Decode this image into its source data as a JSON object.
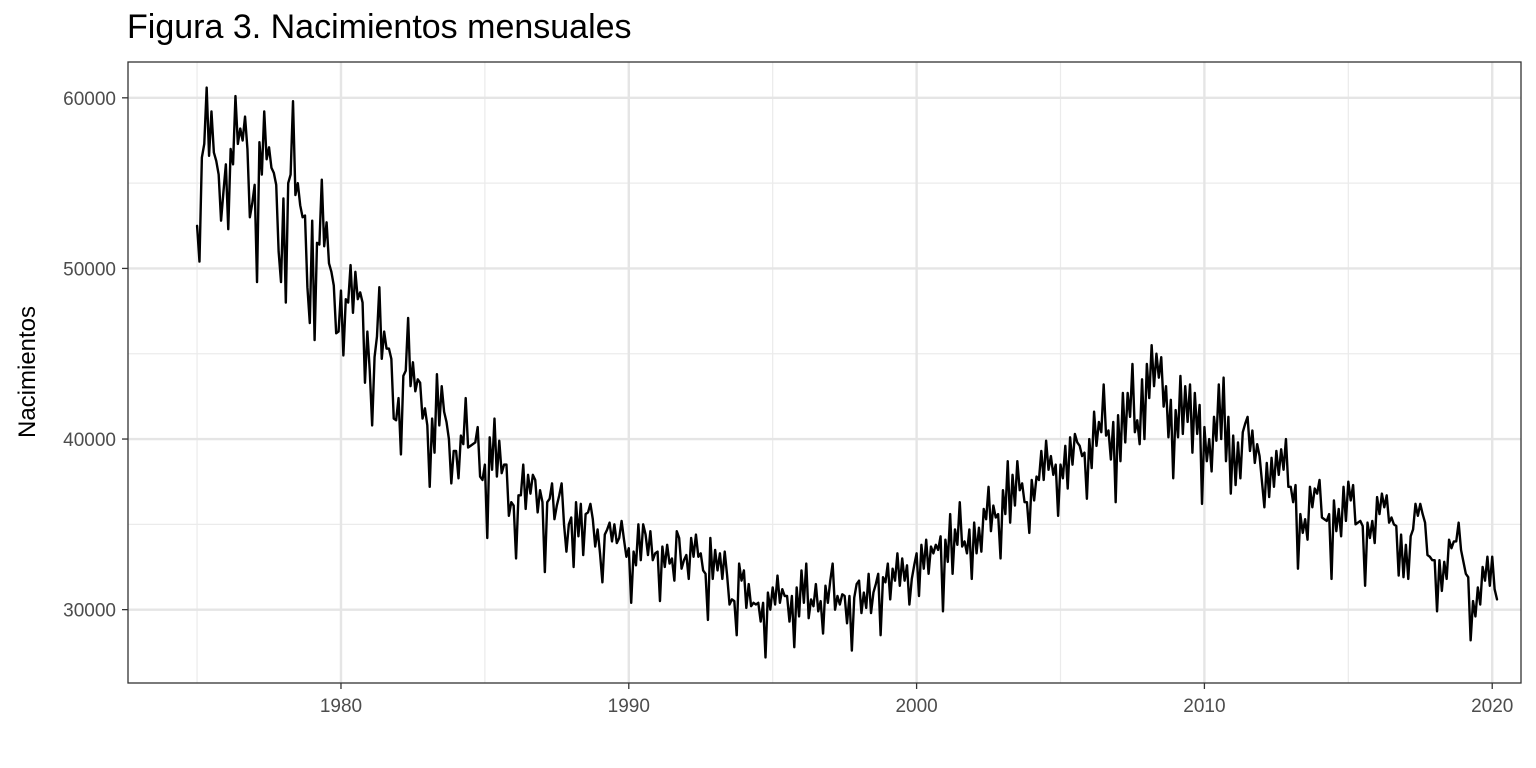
{
  "chart_data": {
    "type": "line",
    "title": "Figura 3. Nacimientos mensuales",
    "xlabel": "",
    "ylabel": "Nacimientos",
    "xlim": [
      1972.6,
      2021.0
    ],
    "ylim": [
      25700,
      62100
    ],
    "x_ticks": [
      1980,
      1990,
      2000,
      2010,
      2020
    ],
    "x_tick_labels": [
      "1980",
      "1990",
      "2000",
      "2010",
      "2020"
    ],
    "y_ticks": [
      30000,
      40000,
      50000,
      60000
    ],
    "y_tick_labels": [
      "30000",
      "40000",
      "50000",
      "60000"
    ],
    "grid": true,
    "legend": "none",
    "line_color": "#000000",
    "series": [
      {
        "x_start": 1975.0,
        "x_step": 0.0833333,
        "values": [
          52500,
          50400,
          56500,
          57300,
          60600,
          56600,
          59200,
          56800,
          56300,
          55500,
          52800,
          54500,
          56100,
          52300,
          57000,
          56100,
          60100,
          57300,
          58200,
          57500,
          58900,
          57000,
          53000,
          53800,
          54900,
          49200,
          57400,
          55500,
          59200,
          56400,
          57100,
          55900,
          55600,
          54900,
          51000,
          49200,
          54100,
          48000,
          55000,
          55500,
          59800,
          54300,
          55000,
          53700,
          53000,
          53100,
          48900,
          46800,
          52800,
          45800,
          51500,
          51400,
          55200,
          51300,
          52700,
          50300,
          49800,
          49000,
          46200,
          46300,
          48700,
          44900,
          48200,
          48000,
          50200,
          47400,
          49800,
          48200,
          48600,
          48000,
          43300,
          46300,
          44000,
          40800,
          44800,
          46000,
          48900,
          44700,
          46300,
          45300,
          45300,
          44700,
          41200,
          41100,
          42400,
          39100,
          43700,
          44000,
          47100,
          43100,
          44500,
          42800,
          43500,
          43300,
          41200,
          41800,
          40800,
          37200,
          41200,
          39200,
          43800,
          40800,
          43100,
          41600,
          41000,
          40000,
          37400,
          39300,
          39300,
          37700,
          40200,
          39700,
          42400,
          39500,
          39600,
          39700,
          39800,
          40700,
          37800,
          37600,
          38500,
          34200,
          40100,
          38200,
          41200,
          37800,
          39900,
          38000,
          38500,
          38500,
          35500,
          36300,
          36100,
          33000,
          36700,
          36700,
          38500,
          35900,
          37900,
          36800,
          37900,
          37600,
          35700,
          37000,
          36300,
          32200,
          36300,
          36500,
          37400,
          35300,
          36100,
          36700,
          37400,
          35000,
          33400,
          35000,
          35400,
          32500,
          36300,
          34300,
          36200,
          33200,
          35600,
          35700,
          36200,
          35300,
          33700,
          34700,
          33300,
          31600,
          34400,
          34700,
          35100,
          34000,
          35000,
          33900,
          34200,
          35200,
          34100,
          33100,
          33600,
          30400,
          33400,
          32600,
          35000,
          32900,
          35000,
          34400,
          33200,
          34600,
          32900,
          33300,
          33400,
          30500,
          33700,
          32500,
          33800,
          32700,
          33000,
          31700,
          34600,
          34200,
          32400,
          32900,
          33200,
          31800,
          34200,
          33100,
          34400,
          33100,
          33300,
          32300,
          32100,
          29400,
          34200,
          31800,
          33500,
          32300,
          33300,
          31800,
          33400,
          32000,
          30300,
          30600,
          30500,
          28500,
          32700,
          31700,
          32300,
          30100,
          31500,
          30200,
          30400,
          30300,
          30400,
          29300,
          30400,
          27200,
          31000,
          30000,
          31300,
          30300,
          32000,
          30400,
          31200,
          30800,
          30800,
          29300,
          30800,
          27800,
          31300,
          29600,
          32300,
          30400,
          32700,
          29500,
          30600,
          30200,
          31500,
          29900,
          30500,
          28600,
          31400,
          30400,
          31700,
          32700,
          30000,
          30800,
          30300,
          30900,
          30800,
          29200,
          30800,
          27600,
          30700,
          31500,
          31700,
          29800,
          31000,
          30100,
          32100,
          29800,
          31000,
          31500,
          32100,
          28500,
          31900,
          31600,
          32700,
          30600,
          32400,
          31700,
          33300,
          31400,
          33000,
          31700,
          32600,
          30300,
          31800,
          32600,
          33300,
          30800,
          33800,
          32400,
          34100,
          32100,
          33700,
          33300,
          33800,
          33500,
          34300,
          29900,
          34100,
          32800,
          35600,
          32100,
          34700,
          33800,
          36300,
          33700,
          34000,
          33300,
          34700,
          31800,
          35100,
          33300,
          34800,
          33400,
          35900,
          35300,
          37200,
          34600,
          36100,
          35400,
          35600,
          33000,
          37000,
          35600,
          38700,
          35100,
          37900,
          36100,
          38700,
          37000,
          37400,
          36300,
          36300,
          34500,
          37600,
          36400,
          37800,
          37600,
          39300,
          37600,
          39900,
          38200,
          39000,
          37900,
          38500,
          35500,
          38500,
          37700,
          39600,
          37100,
          40100,
          38500,
          40300,
          39800,
          39600,
          39000,
          39200,
          36500,
          40000,
          38300,
          41600,
          39600,
          41000,
          40400,
          43200,
          40200,
          40500,
          38800,
          41000,
          36300,
          41400,
          38700,
          42700,
          39800,
          42700,
          41300,
          44400,
          40400,
          41100,
          39700,
          43500,
          40000,
          44400,
          42400,
          45500,
          43100,
          45000,
          43600,
          44800,
          41900,
          43100,
          40100,
          42300,
          37700,
          41700,
          40100,
          43700,
          40300,
          43100,
          41000,
          43200,
          39200,
          42700,
          40300,
          42000,
          36200,
          40700,
          38700,
          40000,
          38100,
          41300,
          39900,
          43200,
          40000,
          43600,
          38700,
          41300,
          36800,
          40200,
          37300,
          39800,
          37700,
          40400,
          40900,
          41300,
          39300,
          40500,
          38600,
          39700,
          39000,
          37500,
          36000,
          38600,
          36600,
          38900,
          37200,
          39300,
          37900,
          39400,
          38200,
          40000,
          37200,
          37200,
          36300,
          37300,
          32400,
          35600,
          34500,
          35300,
          34100,
          37200,
          36000,
          37100,
          36800,
          37600,
          35400,
          35300,
          35200,
          35600,
          31800,
          36400,
          34600,
          35900,
          34300,
          37200,
          35200,
          37500,
          36400,
          37300,
          35000,
          35100,
          35200,
          34900,
          31400,
          35100,
          34200,
          35200,
          33900,
          36600,
          35600,
          36800,
          36000,
          36700,
          35100,
          35400,
          35000,
          34900,
          32000,
          34400,
          31900,
          33800,
          31800,
          34300,
          34700,
          36200,
          35500,
          36200,
          35600,
          35100,
          33200,
          33100,
          32900,
          32900,
          29900,
          32900,
          31100,
          32800,
          31800,
          34100,
          33600,
          34000,
          34000,
          35100,
          33500,
          32800,
          32100,
          31900,
          28200,
          30500,
          29600,
          31300,
          30300,
          32500,
          31700,
          33100,
          31400,
          33100,
          31200,
          30600
        ]
      }
    ]
  }
}
